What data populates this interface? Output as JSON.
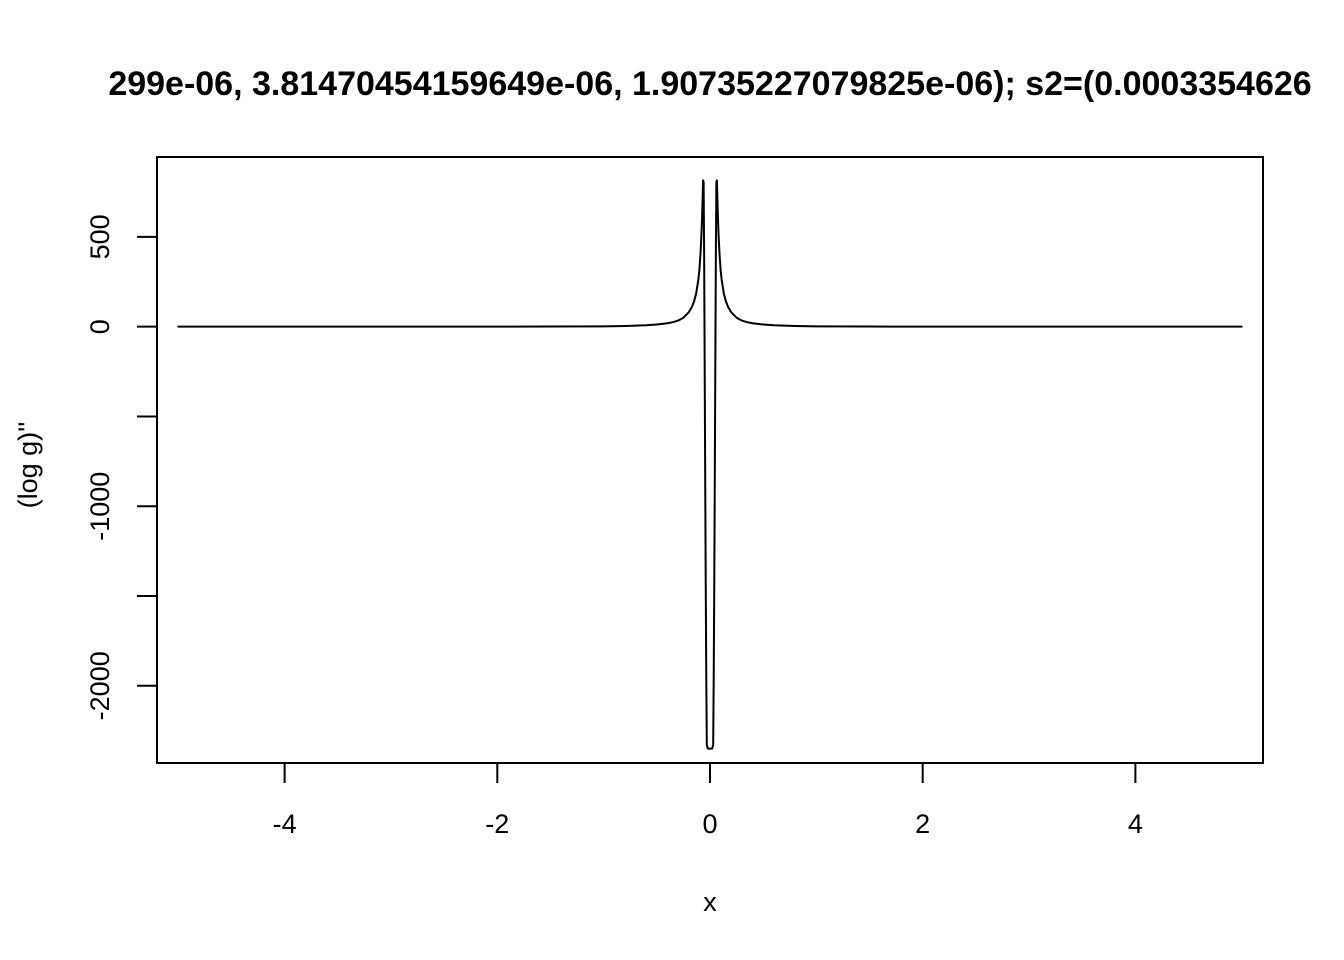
{
  "chart_data": {
    "type": "line",
    "title": "299e-06, 3.81470454159649e-06, 1.90735227079825e-06); s2=(0.0003354626",
    "xlabel": "x",
    "ylabel": "(log g)''",
    "xlim": [
      -5.2,
      5.2
    ],
    "ylim": [
      -2430,
      945
    ],
    "x_ticks": [
      -4,
      -2,
      0,
      2,
      4
    ],
    "x_tick_labels": [
      "-4",
      "-2",
      "0",
      "2",
      "4"
    ],
    "y_ticks": [
      -2000,
      -1500,
      -1000,
      -500,
      0,
      500
    ],
    "y_tick_labels": [
      "-2000",
      "",
      "-1000",
      "",
      "0",
      "500"
    ],
    "grid": false,
    "legend": "none",
    "series": [
      {
        "color": "#000000",
        "x": [
          -5,
          -4,
          -3,
          -2,
          -1.5,
          -1,
          -0.8,
          -0.6,
          -0.5,
          -0.4,
          -0.35,
          -0.3,
          -0.25,
          -0.2,
          -0.17,
          -0.15,
          -0.13,
          -0.11,
          -0.1,
          -0.09,
          -0.08,
          -0.075,
          -0.07,
          -0.065,
          -0.06,
          -0.055,
          -0.05,
          -0.045,
          -0.04,
          -0.035,
          -0.03,
          -0.02,
          -0.01,
          0,
          0.01,
          0.02,
          0.03,
          0.035,
          0.04,
          0.045,
          0.05,
          0.055,
          0.06,
          0.065,
          0.07,
          0.075,
          0.08,
          0.09,
          0.1,
          0.11,
          0.13,
          0.15,
          0.17,
          0.2,
          0.25,
          0.3,
          0.35,
          0.4,
          0.5,
          0.6,
          0.8,
          1,
          1.5,
          2,
          3,
          4,
          5
        ],
        "y": [
          0.05,
          0.1,
          0.2,
          0.4,
          0.8,
          2,
          4,
          8,
          12,
          19,
          25,
          34,
          50,
          80,
          110,
          140,
          185,
          260,
          315,
          400,
          520,
          600,
          700,
          815,
          805,
          390,
          -220,
          -850,
          -1450,
          -1950,
          -2330,
          -2350,
          -2350,
          -2350,
          -2350,
          -2350,
          -2330,
          -1950,
          -1450,
          -850,
          -220,
          390,
          805,
          815,
          700,
          600,
          520,
          400,
          315,
          260,
          185,
          140,
          110,
          80,
          50,
          34,
          25,
          19,
          12,
          8,
          4,
          2,
          0.8,
          0.4,
          0.2,
          0.1,
          0.05
        ]
      }
    ]
  }
}
